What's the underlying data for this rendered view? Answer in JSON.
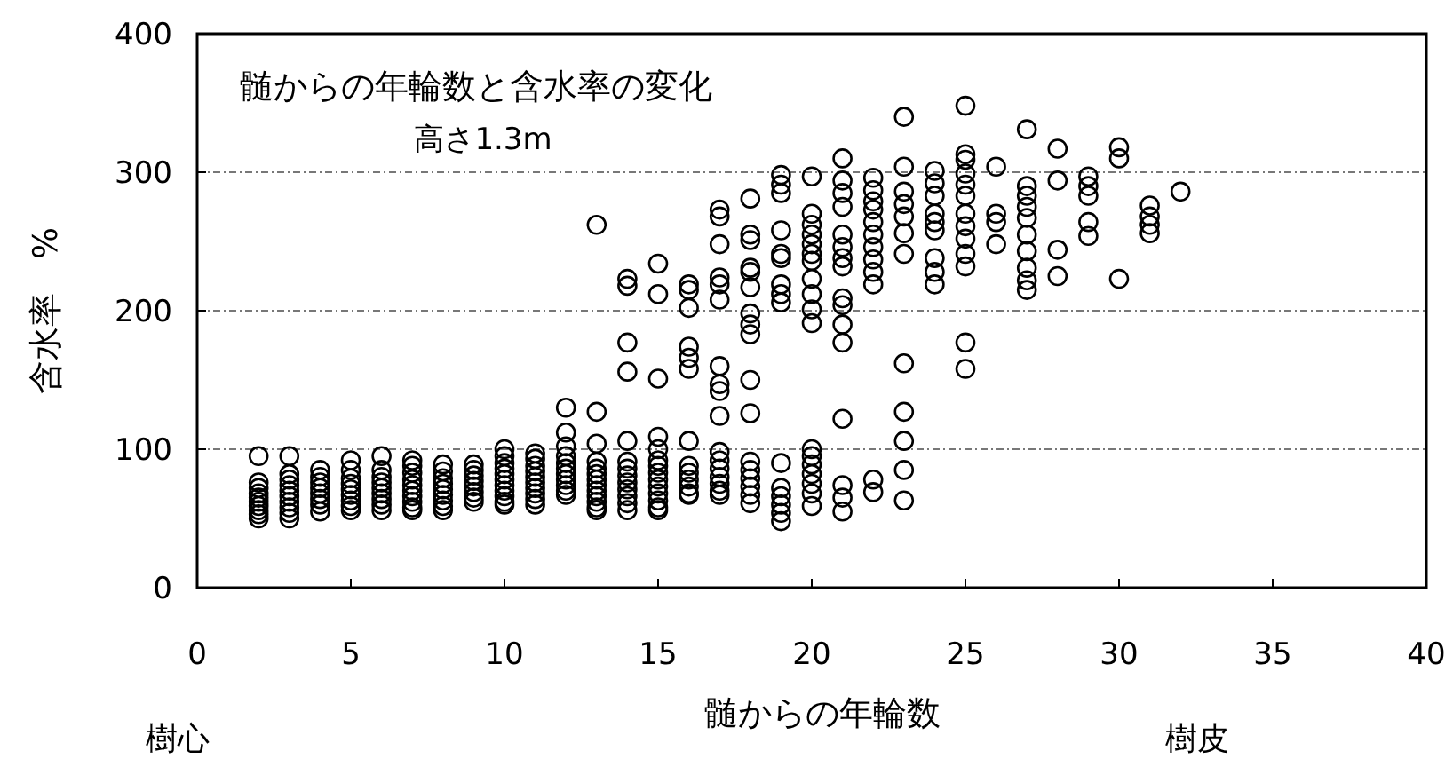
{
  "chart_data": {
    "type": "scatter",
    "title": "髄からの年輪数と含水率の変化",
    "subtitle": "高さ1.3m",
    "xlabel": "髄からの年輪数",
    "ylabel": "含水率　%",
    "annotations": [
      "樹心",
      "樹皮"
    ],
    "xlim": [
      0,
      40
    ],
    "xticks": [
      0,
      5,
      10,
      15,
      20,
      25,
      30,
      35,
      40
    ],
    "ylim": [
      0,
      400
    ],
    "yticks": [
      0,
      100,
      200,
      300,
      400
    ],
    "grid": "y",
    "marker": "circle",
    "series": [
      {
        "color": "#000000",
        "x": [
          2,
          2,
          2,
          2,
          2,
          2,
          2,
          2,
          2,
          2,
          3,
          3,
          3,
          3,
          3,
          3,
          3,
          3,
          3,
          3,
          4,
          4,
          4,
          4,
          4,
          4,
          4,
          4,
          5,
          5,
          5,
          5,
          5,
          5,
          5,
          5,
          5,
          6,
          6,
          6,
          6,
          6,
          6,
          6,
          6,
          6,
          7,
          7,
          7,
          7,
          7,
          7,
          7,
          7,
          7,
          7,
          8,
          8,
          8,
          8,
          8,
          8,
          8,
          8,
          8,
          9,
          9,
          9,
          9,
          9,
          9,
          9,
          9,
          10,
          10,
          10,
          10,
          10,
          10,
          10,
          10,
          10,
          10,
          10,
          11,
          11,
          11,
          11,
          11,
          11,
          11,
          11,
          11,
          11,
          12,
          12,
          12,
          12,
          12,
          12,
          12,
          12,
          12,
          12,
          12,
          13,
          13,
          13,
          13,
          13,
          13,
          13,
          13,
          13,
          13,
          13,
          13,
          13,
          14,
          14,
          14,
          14,
          14,
          14,
          14,
          14,
          14,
          14,
          14,
          14,
          14,
          15,
          15,
          15,
          15,
          15,
          15,
          15,
          15,
          15,
          15,
          15,
          15,
          15,
          15,
          16,
          16,
          16,
          16,
          16,
          16,
          16,
          16,
          16,
          16,
          16,
          16,
          16,
          17,
          17,
          17,
          17,
          17,
          17,
          17,
          17,
          17,
          17,
          17,
          17,
          17,
          17,
          17,
          17,
          17,
          18,
          18,
          18,
          18,
          18,
          18,
          18,
          18,
          18,
          18,
          18,
          18,
          18,
          18,
          18,
          18,
          18,
          19,
          19,
          19,
          19,
          19,
          19,
          19,
          19,
          19,
          19,
          19,
          19,
          19,
          19,
          19,
          20,
          20,
          20,
          20,
          20,
          20,
          20,
          20,
          20,
          20,
          20,
          20,
          20,
          20,
          20,
          20,
          20,
          20,
          21,
          21,
          21,
          21,
          21,
          21,
          21,
          21,
          21,
          21,
          21,
          21,
          21,
          21,
          21,
          21,
          22,
          22,
          22,
          22,
          22,
          22,
          22,
          22,
          22,
          22,
          22,
          22,
          23,
          23,
          23,
          23,
          23,
          23,
          23,
          23,
          23,
          23,
          23,
          23,
          24,
          24,
          24,
          24,
          24,
          24,
          24,
          24,
          24,
          25,
          25,
          25,
          25,
          25,
          25,
          25,
          25,
          25,
          25,
          25,
          25,
          25,
          26,
          26,
          26,
          26,
          27,
          27,
          27,
          27,
          27,
          27,
          27,
          27,
          27,
          27,
          28,
          28,
          28,
          28,
          29,
          29,
          29,
          29,
          29,
          30,
          30,
          30,
          31,
          31,
          31,
          31,
          32
        ],
        "values": [
          95,
          76,
          72,
          68,
          65,
          62,
          59,
          56,
          53,
          50,
          95,
          82,
          78,
          74,
          70,
          66,
          62,
          58,
          54,
          50,
          85,
          80,
          76,
          72,
          68,
          64,
          60,
          55,
          92,
          85,
          79,
          75,
          71,
          67,
          63,
          59,
          56,
          95,
          85,
          80,
          76,
          72,
          68,
          64,
          60,
          56,
          92,
          88,
          83,
          78,
          74,
          70,
          66,
          62,
          58,
          56,
          89,
          84,
          79,
          75,
          71,
          67,
          63,
          59,
          56,
          89,
          85,
          81,
          77,
          73,
          69,
          65,
          62,
          100,
          95,
          90,
          86,
          82,
          78,
          74,
          70,
          66,
          62,
          60,
          97,
          93,
          88,
          84,
          80,
          76,
          72,
          68,
          64,
          60,
          130,
          112,
          102,
          95,
          90,
          86,
          82,
          78,
          74,
          70,
          67,
          262,
          127,
          104,
          91,
          86,
          82,
          78,
          74,
          70,
          66,
          62,
          58,
          56,
          223,
          218,
          177,
          156,
          106,
          91,
          86,
          81,
          76,
          71,
          66,
          61,
          56,
          234,
          212,
          151,
          109,
          100,
          92,
          88,
          83,
          78,
          73,
          68,
          63,
          58,
          56,
          219,
          215,
          202,
          174,
          166,
          158,
          106,
          88,
          83,
          78,
          73,
          68,
          67,
          273,
          268,
          248,
          224,
          219,
          208,
          160,
          147,
          142,
          124,
          98,
          92,
          86,
          80,
          75,
          70,
          67,
          281,
          255,
          251,
          231,
          228,
          217,
          198,
          190,
          183,
          150,
          126,
          91,
          85,
          79,
          73,
          67,
          61,
          298,
          291,
          285,
          258,
          241,
          238,
          219,
          212,
          206,
          90,
          72,
          66,
          60,
          54,
          48,
          297,
          270,
          262,
          255,
          248,
          241,
          236,
          223,
          212,
          201,
          191,
          100,
          95,
          89,
          82,
          75,
          68,
          59,
          310,
          294,
          285,
          275,
          255,
          246,
          238,
          232,
          209,
          204,
          190,
          177,
          122,
          74,
          65,
          55,
          296,
          287,
          279,
          273,
          264,
          255,
          246,
          237,
          228,
          219,
          78,
          69,
          340,
          304,
          286,
          277,
          268,
          256,
          241,
          162,
          127,
          106,
          85,
          63,
          301,
          292,
          283,
          270,
          264,
          258,
          238,
          228,
          219,
          348,
          313,
          309,
          299,
          291,
          283,
          270,
          261,
          252,
          241,
          232,
          177,
          158,
          304,
          270,
          264,
          248,
          331,
          290,
          283,
          275,
          267,
          255,
          243,
          231,
          222,
          215,
          317,
          294,
          244,
          225,
          297,
          290,
          283,
          264,
          254,
          318,
          310,
          223,
          276,
          268,
          262,
          256,
          286
        ]
      }
    ]
  }
}
